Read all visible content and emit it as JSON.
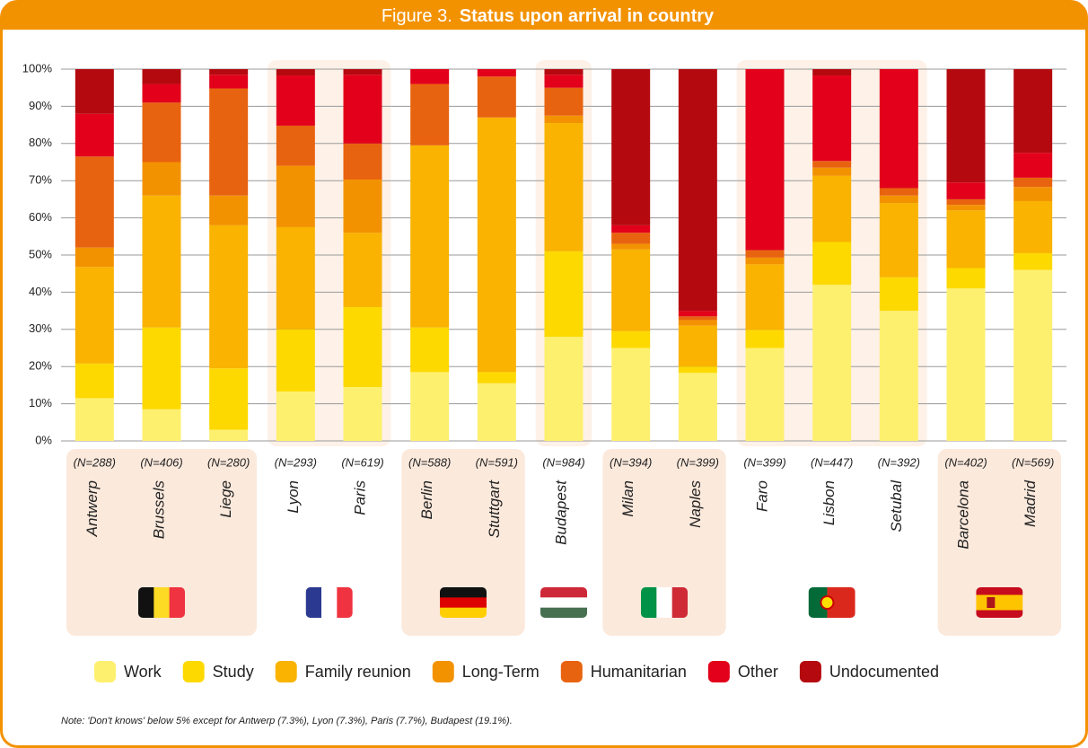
{
  "chart_data": {
    "type": "stacked_bar",
    "title_prefix": "Figure 3.",
    "title": "Status upon arrival in country",
    "categories": [
      "Antwerp",
      "Brussels",
      "Liege",
      "Lyon",
      "Paris",
      "Berlin",
      "Stuttgart",
      "Budapest",
      "Milan",
      "Naples",
      "Faro",
      "Lisbon",
      "Setubal",
      "Barcelona",
      "Madrid"
    ],
    "sample_sizes": [
      "(N=288)",
      "(N=406)",
      "(N=280)",
      "(N=293)",
      "(N=619)",
      "(N=588)",
      "(N=591)",
      "(N=984)",
      "(N=394)",
      "(N=399)",
      "(N=399)",
      "(N=447)",
      "(N=392)",
      "(N=402)",
      "(N=569)"
    ],
    "series": [
      {
        "name": "Work",
        "color": "#fef06f",
        "values": [
          11.5,
          8.5,
          3,
          13.3,
          14.5,
          18.5,
          15.5,
          28,
          25,
          18.3,
          25,
          42,
          35,
          41,
          46
        ]
      },
      {
        "name": "Study",
        "color": "#fdd900",
        "values": [
          9.3,
          22,
          16.5,
          16.7,
          21.5,
          12,
          3,
          23,
          4.5,
          1.7,
          4.8,
          11.5,
          9,
          5.5,
          4.5
        ]
      },
      {
        "name": "Family reunion",
        "color": "#f9b300",
        "values": [
          26,
          35.5,
          38.5,
          27.5,
          20,
          49,
          68.5,
          34.5,
          22,
          11,
          17.7,
          17.8,
          20,
          15.5,
          14
        ]
      },
      {
        "name": "Long-Term",
        "color": "#f39200",
        "values": [
          5.2,
          9,
          8,
          16.5,
          14.3,
          0,
          0,
          2,
          1.5,
          1.5,
          1.8,
          2.2,
          2,
          1.5,
          3.8
        ]
      },
      {
        "name": "Humanitarian",
        "color": "#e8630f",
        "values": [
          24.5,
          16,
          28.8,
          10.8,
          9.7,
          16.5,
          11,
          7.5,
          3,
          1,
          2,
          1.8,
          2,
          1.5,
          2.5
        ]
      },
      {
        "name": "Other",
        "color": "#e2001a",
        "values": [
          11.5,
          5,
          3.7,
          13.5,
          18.5,
          4,
          2,
          3.5,
          2,
          1.5,
          48.7,
          23,
          32,
          4.5,
          6.7
        ]
      },
      {
        "name": "Undocumented",
        "color": "#b4090f",
        "values": [
          12,
          4,
          1.5,
          1.7,
          1.5,
          0,
          0,
          1.5,
          42,
          65,
          0,
          1.7,
          0,
          30.5,
          22.5
        ]
      }
    ],
    "ylim": [
      0,
      100
    ],
    "yticks": [
      {
        "value": 0,
        "label": "0%"
      },
      {
        "value": 10,
        "label": "10%"
      },
      {
        "value": 20,
        "label": "20%"
      },
      {
        "value": 30,
        "label": "30%"
      },
      {
        "value": 40,
        "label": "40%"
      },
      {
        "value": 50,
        "label": "50%"
      },
      {
        "value": 60,
        "label": "60%"
      },
      {
        "value": 70,
        "label": "70%"
      },
      {
        "value": 80,
        "label": "80%"
      },
      {
        "value": 90,
        "label": "90%"
      },
      {
        "value": 100,
        "label": "100%"
      }
    ],
    "grid": true,
    "note": "Note: 'Don't knows' below 5% except for Antwerp (7.3%), Lyon (7.3%), Paris (7.7%), Budapest (19.1%)."
  }
}
